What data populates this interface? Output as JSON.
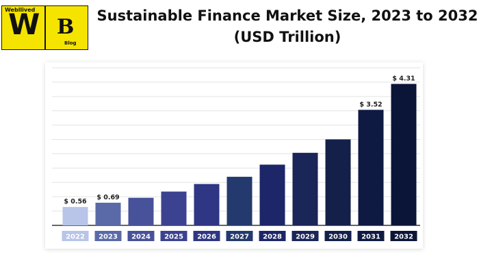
{
  "logo": {
    "top_text": "Webllived",
    "letter_w": "W",
    "letter_b": "B",
    "blog_text": "Blog"
  },
  "chart_data": {
    "type": "bar",
    "title": "Sustainable Finance Market Size, 2023 to 2032 (USD Trillion)",
    "categories": [
      "2022",
      "2023",
      "2024",
      "2025",
      "2026",
      "2027",
      "2028",
      "2029",
      "2030",
      "2031",
      "2032"
    ],
    "values": [
      0.56,
      0.69,
      0.84,
      1.03,
      1.26,
      1.48,
      1.85,
      2.21,
      2.62,
      3.52,
      4.31
    ],
    "data_labels": [
      "$ 0.56",
      "$ 0.69",
      "",
      "",
      "",
      "",
      "",
      "",
      "",
      "$ 3.52",
      "$ 4.31"
    ],
    "ylim": [
      0,
      4.8
    ],
    "grid": true,
    "colors": [
      "#b8c4e8",
      "#5a6aa8",
      "#48529a",
      "#3b4390",
      "#2f3683",
      "#243a6e",
      "#1c2668",
      "#1a2558",
      "#14204a",
      "#0f1a42",
      "#0b1538"
    ]
  }
}
